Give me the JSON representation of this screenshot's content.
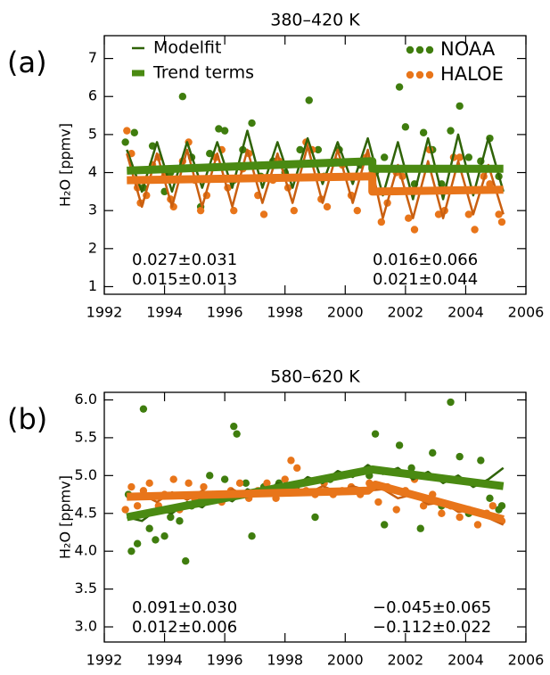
{
  "chart_data": [
    {
      "type": "line",
      "panel_label": "(a)",
      "title": "380–420 K",
      "ylabel": "H₂O [ppmv]",
      "xlim": [
        1992,
        2006
      ],
      "xticks": [
        1992,
        1994,
        1996,
        1998,
        2000,
        2002,
        2004,
        2006
      ],
      "ylim": [
        0.8,
        7.6
      ],
      "yticks": [
        1,
        2,
        3,
        4,
        5,
        6,
        7
      ],
      "series": [
        {
          "name": "NOAA",
          "type": "scatter",
          "color": "#3f7d0e",
          "x": [
            1992.7,
            1993.0,
            1993.3,
            1993.6,
            1994.0,
            1994.2,
            1994.6,
            1994.9,
            1995.2,
            1995.5,
            1995.8,
            1996.0,
            1996.3,
            1996.6,
            1996.9,
            1997.2,
            1997.6,
            1998.0,
            1998.5,
            1998.8,
            1999.1,
            1999.3,
            1999.8,
            2000.5,
            2001.0,
            2001.3,
            2001.8,
            2002.0,
            2002.3,
            2002.6,
            2002.9,
            2003.2,
            2003.5,
            2003.8,
            2004.1,
            2004.5,
            2004.8,
            2005.1
          ],
          "values": [
            4.8,
            5.05,
            3.6,
            4.7,
            3.5,
            4.0,
            6.0,
            4.4,
            3.1,
            4.5,
            5.15,
            5.1,
            3.8,
            4.6,
            5.3,
            3.9,
            4.3,
            4.0,
            4.6,
            5.9,
            4.6,
            3.9,
            4.6,
            4.2,
            4.0,
            4.4,
            6.25,
            5.2,
            3.7,
            5.05,
            4.6,
            3.7,
            5.1,
            5.75,
            4.4,
            4.3,
            4.9,
            3.9
          ]
        },
        {
          "name": "HALOE",
          "type": "scatter",
          "color": "#e8751a",
          "x": [
            1992.75,
            1992.9,
            1993.1,
            1993.2,
            1993.4,
            1993.6,
            1993.8,
            1994.0,
            1994.2,
            1994.3,
            1994.6,
            1994.8,
            1995.0,
            1995.2,
            1995.4,
            1995.7,
            1995.9,
            1996.1,
            1996.3,
            1996.6,
            1996.8,
            1997.1,
            1997.3,
            1997.6,
            1997.8,
            1998.1,
            1998.3,
            1998.7,
            1998.9,
            1999.2,
            1999.4,
            1999.7,
            1999.9,
            2000.2,
            2000.4,
            2000.7,
            2000.9,
            2001.2,
            2001.4,
            2001.7,
            2001.9,
            2002.1,
            2002.3,
            2002.6,
            2002.8,
            2003.1,
            2003.3,
            2003.6,
            2003.8,
            2004.1,
            2004.3,
            2004.6,
            2004.8,
            2005.1,
            2005.2
          ],
          "values": [
            5.1,
            4.5,
            3.6,
            3.2,
            3.4,
            4.2,
            4.4,
            3.9,
            3.3,
            3.1,
            4.3,
            4.8,
            3.8,
            3.0,
            3.4,
            4.4,
            4.6,
            3.6,
            3.0,
            4.1,
            4.5,
            3.4,
            2.9,
            3.8,
            4.3,
            3.6,
            3.0,
            4.8,
            4.6,
            3.3,
            3.1,
            4.3,
            4.2,
            3.4,
            3.0,
            4.4,
            4.0,
            2.7,
            3.2,
            4.0,
            3.9,
            2.8,
            2.5,
            4.1,
            4.6,
            2.9,
            3.0,
            4.4,
            4.4,
            2.9,
            2.5,
            3.9,
            3.7,
            2.9,
            2.7
          ]
        },
        {
          "name": "Modelfit",
          "type": "line",
          "color": "#2f6308",
          "width": 2.5,
          "x": [
            1992.75,
            1993.25,
            1993.75,
            1994.25,
            1994.75,
            1995.25,
            1995.75,
            1996.25,
            1996.75,
            1997.25,
            1997.75,
            1998.25,
            1998.75,
            1999.25,
            1999.75,
            2000.25,
            2000.75,
            2001.25,
            2001.75,
            2002.25,
            2002.75,
            2003.25,
            2003.75,
            2004.25,
            2004.75,
            2005.25
          ],
          "values": [
            4.6,
            3.5,
            4.8,
            3.5,
            4.8,
            3.6,
            4.8,
            3.6,
            5.1,
            3.6,
            4.8,
            3.6,
            4.9,
            3.7,
            4.8,
            3.7,
            4.9,
            3.4,
            4.8,
            3.3,
            4.9,
            3.3,
            5.0,
            3.4,
            4.9,
            3.5
          ]
        },
        {
          "type": "line",
          "color": "#c95f10",
          "width": 2.5,
          "x": [
            1992.75,
            1993.25,
            1993.75,
            1994.25,
            1994.75,
            1995.25,
            1995.75,
            1996.25,
            1996.75,
            1997.25,
            1997.75,
            1998.25,
            1998.75,
            1999.25,
            1999.75,
            2000.25,
            2000.75,
            2001.25,
            2001.75,
            2002.25,
            2002.75,
            2003.25,
            2003.75,
            2004.25,
            2004.75,
            2005.25
          ],
          "values": [
            4.5,
            3.1,
            4.5,
            3.1,
            4.6,
            3.1,
            4.5,
            3.1,
            4.6,
            3.2,
            4.5,
            3.2,
            4.7,
            3.2,
            4.6,
            3.2,
            4.6,
            2.8,
            4.2,
            2.8,
            4.3,
            2.8,
            4.3,
            2.9,
            4.2,
            2.9
          ]
        },
        {
          "name": "Trend terms",
          "type": "line",
          "color": "#4a8a12",
          "width": 9,
          "x": [
            1992.75,
            2000.9,
            2000.9,
            2005.25
          ],
          "values": [
            4.05,
            4.3,
            4.1,
            4.1
          ]
        },
        {
          "type": "line",
          "color": "#e8751a",
          "width": 9,
          "x": [
            1992.75,
            2000.9,
            2000.9,
            2005.25
          ],
          "values": [
            3.8,
            3.9,
            3.5,
            3.55
          ]
        }
      ],
      "annotations": [
        {
          "text": "0.027±0.031",
          "color": "#3f7d0e"
        },
        {
          "text": "0.015±0.013",
          "color": "#e8751a"
        },
        {
          "text": "0.016±0.066",
          "color": "#3f7d0e"
        },
        {
          "text": "0.021±0.044",
          "color": "#e8751a"
        }
      ]
    },
    {
      "type": "line",
      "panel_label": "(b)",
      "title": "580–620 K",
      "ylabel": "H₂O [ppmv]",
      "xlim": [
        1992,
        2006
      ],
      "xticks": [
        1992,
        1994,
        1996,
        1998,
        2000,
        2002,
        2004,
        2006
      ],
      "ylim": [
        2.8,
        6.1
      ],
      "yticks": [
        {
          "value": 3,
          "label": "3.0"
        },
        3.5,
        {
          "value": 4,
          "label": "4.0"
        },
        4.5,
        {
          "value": 5,
          "label": "5.0"
        },
        5.5,
        {
          "value": 6,
          "label": "6.0"
        }
      ],
      "series": [
        {
          "type": "scatter",
          "color": "#3f7d0e",
          "x": [
            1992.8,
            1992.9,
            1993.1,
            1993.3,
            1993.5,
            1993.7,
            1994.0,
            1994.2,
            1994.5,
            1994.7,
            1994.9,
            1995.2,
            1995.5,
            1995.8,
            1996.0,
            1996.3,
            1996.4,
            1996.7,
            1996.9,
            1997.3,
            1997.8,
            1998.4,
            1999.0,
            1999.5,
            2000.3,
            2000.8,
            2001.0,
            2001.3,
            2001.8,
            2002.2,
            2002.5,
            2002.9,
            2003.2,
            2003.5,
            2003.8,
            2004.1,
            2004.5,
            2004.8,
            2005.1,
            2005.2
          ],
          "values": [
            4.75,
            4.0,
            4.1,
            5.88,
            4.3,
            4.15,
            4.2,
            4.45,
            4.4,
            3.87,
            4.6,
            4.7,
            5.0,
            4.75,
            4.95,
            5.65,
            5.55,
            4.9,
            4.2,
            4.85,
            4.9,
            4.8,
            4.45,
            4.95,
            4.8,
            5.0,
            5.55,
            4.35,
            5.4,
            5.1,
            4.3,
            5.3,
            4.6,
            5.97,
            5.25,
            4.5,
            5.2,
            4.7,
            4.55,
            4.6
          ]
        },
        {
          "type": "scatter",
          "color": "#e8751a",
          "x": [
            1992.7,
            1992.9,
            1993.1,
            1993.3,
            1993.5,
            1993.8,
            1994.0,
            1994.3,
            1994.5,
            1994.8,
            1995.0,
            1995.3,
            1995.6,
            1995.9,
            1996.2,
            1996.5,
            1996.8,
            1997.1,
            1997.4,
            1997.7,
            1998.0,
            1998.2,
            1998.4,
            1998.7,
            1999.0,
            1999.3,
            1999.6,
            1999.9,
            2000.2,
            2000.5,
            2000.8,
            2001.1,
            2001.4,
            2001.7,
            2002.0,
            2002.3,
            2002.6,
            2002.9,
            2003.2,
            2003.5,
            2003.8,
            2004.1,
            2004.4,
            2004.7,
            2004.9,
            2005.2
          ],
          "values": [
            4.55,
            4.85,
            4.6,
            4.8,
            4.9,
            4.6,
            4.75,
            4.95,
            4.55,
            4.9,
            4.7,
            4.85,
            4.75,
            4.65,
            4.8,
            4.9,
            4.7,
            4.8,
            4.9,
            4.7,
            4.95,
            5.2,
            5.1,
            4.8,
            4.75,
            4.9,
            4.75,
            4.8,
            4.85,
            4.75,
            4.9,
            4.65,
            4.85,
            4.55,
            4.8,
            4.95,
            4.6,
            4.75,
            4.5,
            4.6,
            4.45,
            4.55,
            4.35,
            4.5,
            4.6,
            4.4
          ]
        },
        {
          "type": "line",
          "color": "#2f6308",
          "width": 2.5,
          "x": [
            1992.75,
            1993.25,
            1993.75,
            1994.25,
            1994.75,
            1995.25,
            1995.75,
            1996.25,
            1996.75,
            1997.25,
            1997.75,
            1998.25,
            1998.75,
            1999.25,
            1999.75,
            2000.25,
            2000.75,
            2001.25,
            2001.75,
            2002.25,
            2002.75,
            2003.25,
            2003.75,
            2004.25,
            2004.75,
            2005.25
          ],
          "values": [
            4.45,
            4.4,
            4.55,
            4.5,
            4.65,
            4.58,
            4.75,
            4.66,
            4.82,
            4.74,
            4.9,
            4.82,
            4.98,
            4.9,
            5.06,
            4.98,
            5.14,
            5.02,
            5.1,
            4.95,
            5.05,
            4.9,
            5.0,
            4.85,
            4.95,
            5.1
          ]
        },
        {
          "type": "line",
          "color": "#c95f10",
          "width": 2.5,
          "x": [
            1992.75,
            1993.25,
            1993.75,
            1994.25,
            1994.75,
            1995.25,
            1995.75,
            1996.25,
            1996.75,
            1997.25,
            1997.75,
            1998.25,
            1998.75,
            1999.25,
            1999.75,
            2000.25,
            2000.75,
            2001.25,
            2001.75,
            2002.25,
            2002.75,
            2003.25,
            2003.75,
            2004.25,
            2004.75,
            2005.25
          ],
          "values": [
            4.7,
            4.75,
            4.65,
            4.78,
            4.68,
            4.8,
            4.7,
            4.82,
            4.72,
            4.84,
            4.74,
            4.85,
            4.76,
            4.86,
            4.78,
            4.86,
            4.8,
            4.82,
            4.7,
            4.75,
            4.62,
            4.65,
            4.52,
            4.55,
            4.44,
            4.35
          ]
        },
        {
          "type": "line",
          "color": "#4a8a12",
          "width": 9,
          "x": [
            1992.75,
            2000.9,
            2005.25
          ],
          "values": [
            4.45,
            5.08,
            4.86
          ]
        },
        {
          "type": "line",
          "color": "#e8751a",
          "width": 9,
          "x": [
            1992.75,
            2000.75,
            2001.0,
            2005.25
          ],
          "values": [
            4.72,
            4.8,
            4.88,
            4.42
          ]
        }
      ],
      "annotations": [
        {
          "text": "0.091±0.030",
          "color": "#3f7d0e"
        },
        {
          "text": "0.012±0.006",
          "color": "#e8751a"
        },
        {
          "text": "−0.045±0.065",
          "color": "#3f7d0e"
        },
        {
          "text": "−0.112±0.022",
          "color": "#e8751a"
        }
      ]
    }
  ]
}
